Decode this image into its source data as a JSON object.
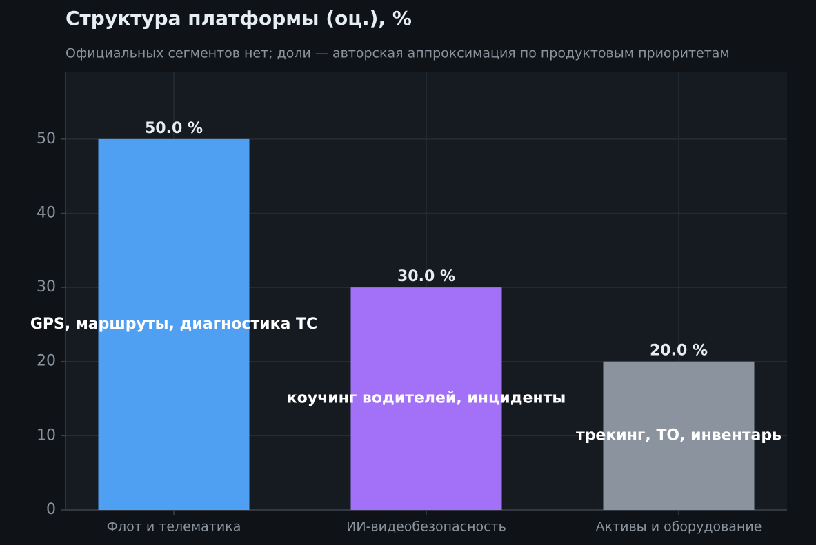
{
  "chart_data": {
    "type": "bar",
    "title": "Структура платформы (оц.), %",
    "subtitle": "Официальных сегментов нет; доли — авторская аппроксимация по продуктовым приоритетам",
    "categories": [
      "Флот и телематика",
      "ИИ-видеобезопасность",
      "Активы и оборудование"
    ],
    "values": [
      50,
      30,
      20
    ],
    "value_labels": [
      "50.0 %",
      "30.0 %",
      "20.0 %"
    ],
    "bar_labels": [
      "GPS, маршруты, диагностика ТС",
      "коучинг водителей, инциденты",
      "трекинг, ТО, инвентарь"
    ],
    "colors": [
      "#4f9ff2",
      "#a371f7",
      "#8b949e"
    ],
    "ylim": [
      0,
      59
    ],
    "yticks": [
      0,
      10,
      20,
      30,
      40,
      50
    ],
    "grid": true
  }
}
